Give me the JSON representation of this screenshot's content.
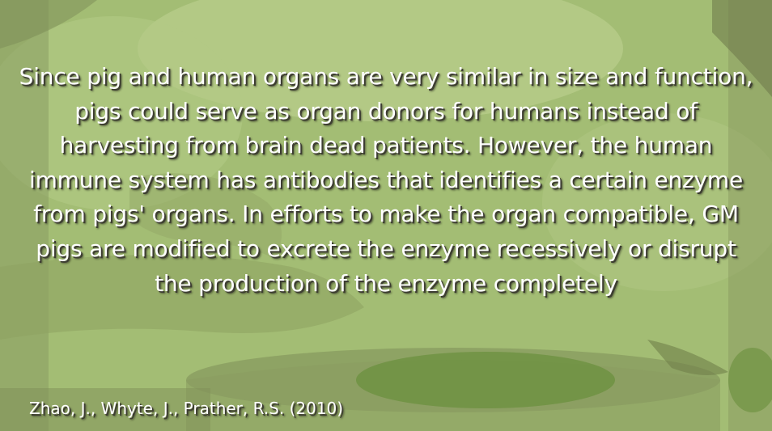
{
  "slide": {
    "quote_text": "Since pig and human organs are very similar in size and function, pigs could serve as organ donors for humans instead of harvesting from brain dead patients. However, the human immune system has antibodies that identifies a certain enzyme from pigs' organs. In efforts to make the organ compatible, GM pigs are modified to excrete the enzyme recessively or disrupt the production of the enzyme completely",
    "citation_text": "Zhao, J., Whyte, J., Prather, R.S. (2010)"
  },
  "colors": {
    "tint": "#a6bf77",
    "text": "#ffffff",
    "shadow": "#3d3d32"
  }
}
